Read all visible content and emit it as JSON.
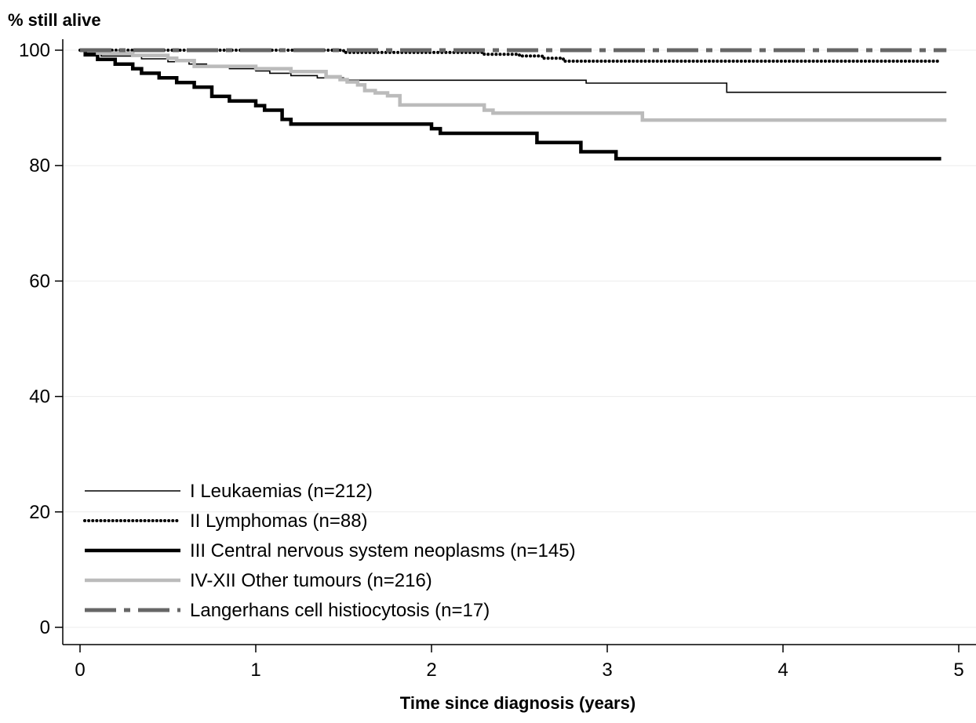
{
  "chart_data": {
    "type": "line",
    "step": true,
    "ylabel": "% still alive",
    "xlabel": "Time since diagnosis (years)",
    "xlim": [
      0,
      5
    ],
    "ylim": [
      0,
      100
    ],
    "xticks": [
      0,
      1,
      2,
      3,
      4,
      5
    ],
    "yticks": [
      0,
      20,
      40,
      60,
      80,
      100
    ],
    "grid": "horizontal",
    "legend_position": "bottom-left",
    "series": [
      {
        "name": "I Leukaemias (n=212)",
        "style": "thin-solid",
        "color": "#000000",
        "x": [
          0,
          0.03,
          0.12,
          0.35,
          0.5,
          0.62,
          0.72,
          0.85,
          1.0,
          1.08,
          1.2,
          1.35,
          1.5,
          2.0,
          2.88,
          3.68,
          4.93
        ],
        "y": [
          100,
          99.5,
          99.0,
          98.5,
          98.0,
          97.6,
          97.2,
          96.8,
          96.4,
          96.0,
          95.6,
          95.2,
          94.8,
          94.8,
          94.3,
          92.7,
          92.7
        ]
      },
      {
        "name": "II Lymphomas (n=88)",
        "style": "dotted",
        "color": "#000000",
        "x": [
          0,
          1.5,
          2.3,
          2.5,
          2.63,
          2.75,
          4.9
        ],
        "y": [
          100,
          99.6,
          99.3,
          99.0,
          98.6,
          98.1,
          98.1
        ]
      },
      {
        "name": "III Central nervous system neoplasms (n=145)",
        "style": "thick-solid",
        "color": "#000000",
        "x": [
          0,
          0.03,
          0.1,
          0.2,
          0.3,
          0.35,
          0.45,
          0.55,
          0.65,
          0.75,
          0.85,
          1.0,
          1.05,
          1.15,
          1.2,
          2.0,
          2.05,
          2.6,
          2.85,
          3.05,
          4.9
        ],
        "y": [
          100,
          99.2,
          98.4,
          97.6,
          96.8,
          96.0,
          95.2,
          94.4,
          93.6,
          92.0,
          91.2,
          90.4,
          89.6,
          88.0,
          87.2,
          86.4,
          85.6,
          84.0,
          82.4,
          81.2,
          81.2
        ]
      },
      {
        "name": "IV-XII Other tumours (n=216)",
        "style": "thick-gray",
        "color": "#bbbbbb",
        "x": [
          0,
          0.1,
          0.3,
          0.5,
          0.55,
          0.65,
          1.0,
          1.2,
          1.4,
          1.48,
          1.52,
          1.58,
          1.62,
          1.68,
          1.75,
          1.82,
          2.0,
          2.3,
          2.35,
          3.2,
          4.93
        ],
        "y": [
          100,
          99.5,
          99.1,
          98.6,
          98.2,
          97.2,
          96.8,
          96.3,
          95.4,
          94.9,
          94.5,
          94.0,
          93.0,
          92.6,
          92.1,
          90.5,
          90.5,
          89.6,
          89.1,
          87.9,
          87.9
        ]
      },
      {
        "name": "Langerhans cell histiocytosis (n=17)",
        "style": "dash-dot",
        "color": "#666666",
        "x": [
          0,
          4.93
        ],
        "y": [
          100,
          100
        ]
      }
    ]
  }
}
